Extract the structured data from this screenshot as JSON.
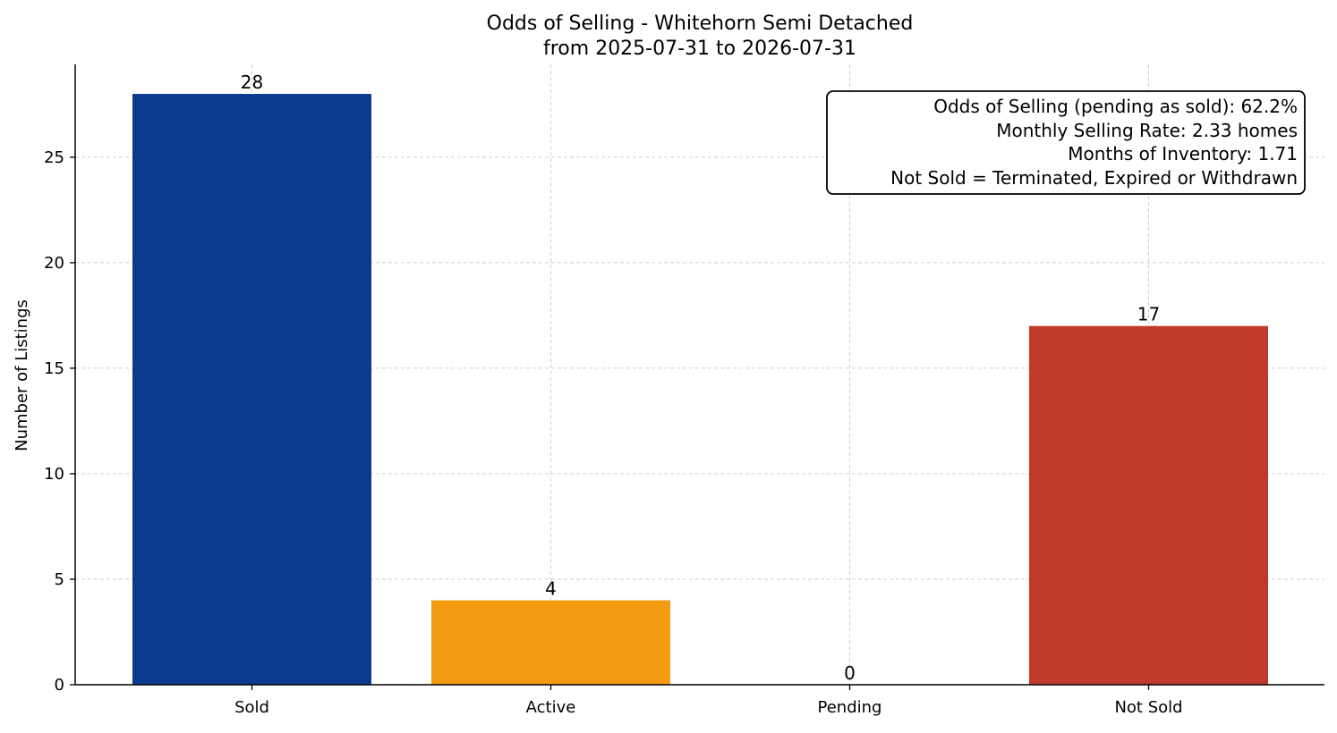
{
  "chart_data": {
    "type": "bar",
    "title": "Odds of Selling - Whitehorn Semi Detached",
    "subtitle": "from 2025-07-31 to 2026-07-31",
    "xlabel": "",
    "ylabel": "Number of Listings",
    "categories": [
      "Sold",
      "Active",
      "Pending",
      "Not Sold"
    ],
    "values": [
      28,
      4,
      0,
      17
    ],
    "value_labels": [
      "28",
      "4",
      "0",
      "17"
    ],
    "colors": [
      "#0b3a8f",
      "#f39c12",
      "#f39c12",
      "#c0392b"
    ],
    "ylim": [
      0,
      29.4
    ],
    "yticks": [
      0,
      5,
      10,
      15,
      20,
      25
    ],
    "grid": true,
    "info_box": {
      "placement": "top-right",
      "lines": [
        "Odds of Selling (pending as sold): 62.2%",
        "Monthly Selling Rate: 2.33 homes",
        "Months of Inventory: 1.71",
        "Not Sold = Terminated, Expired or Withdrawn"
      ]
    }
  }
}
